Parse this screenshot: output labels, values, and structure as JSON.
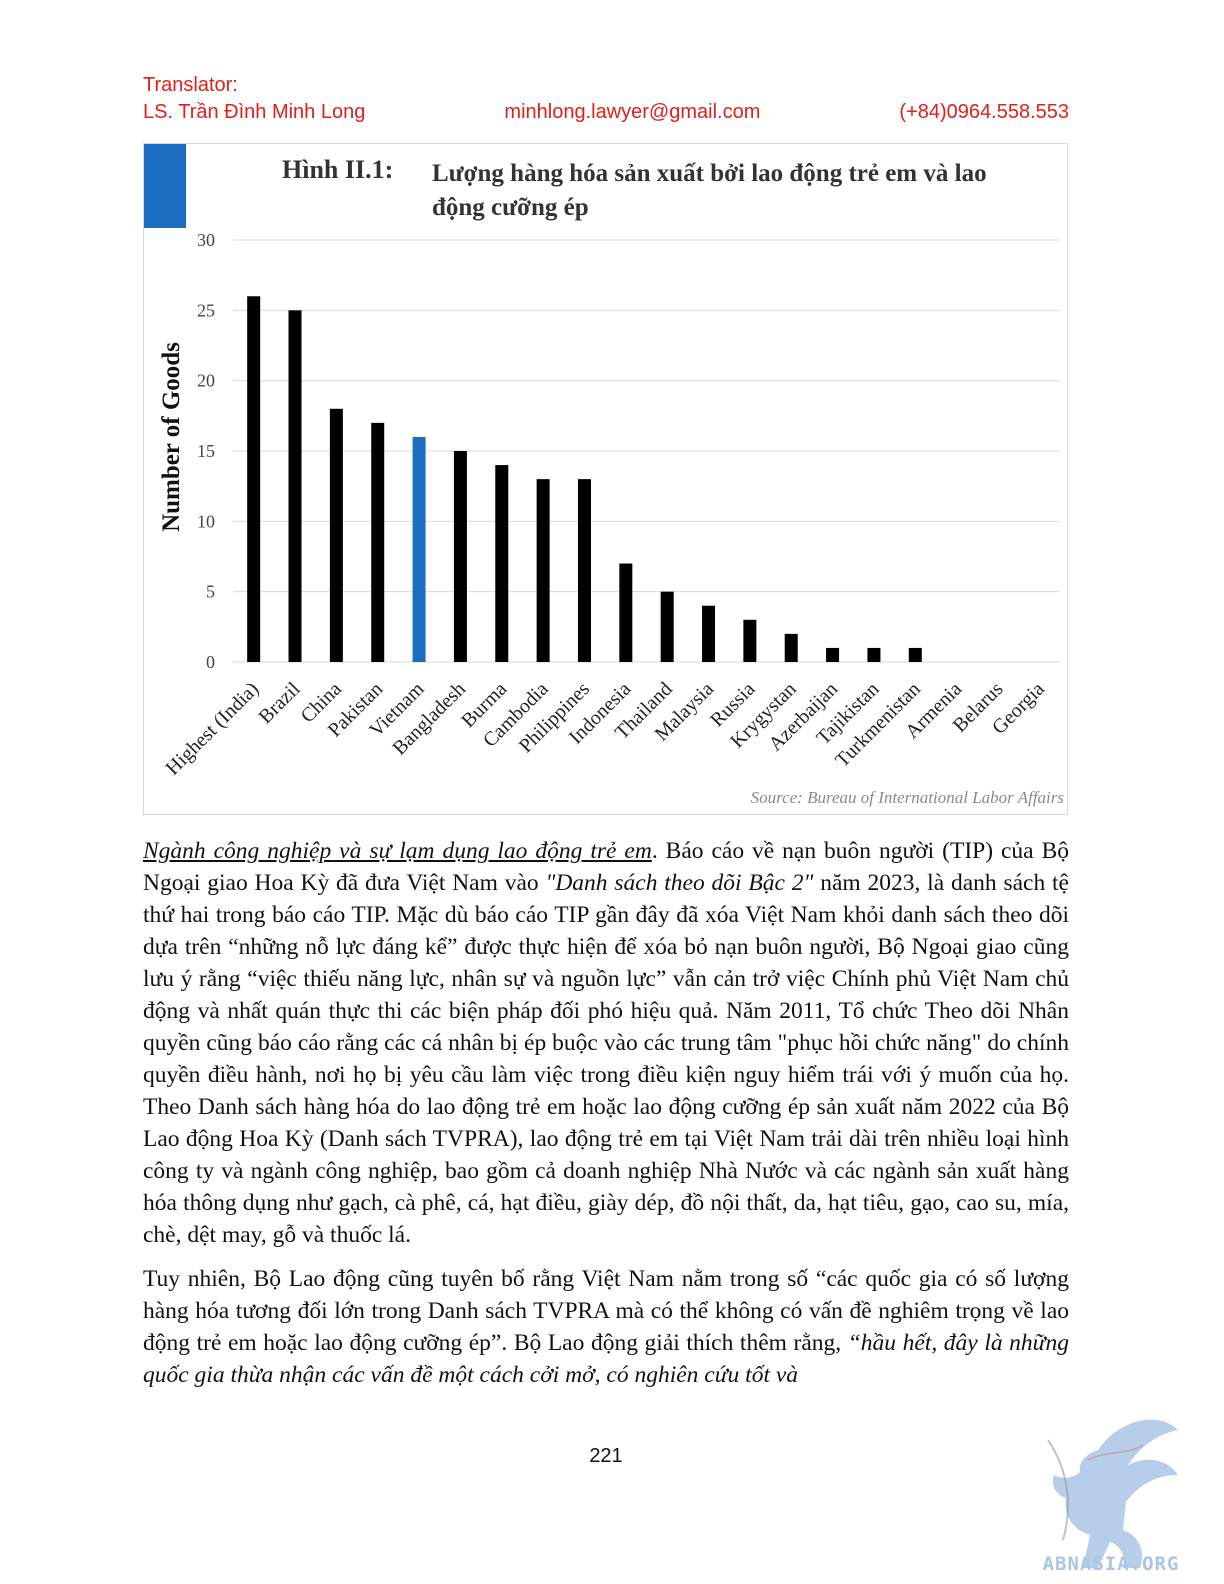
{
  "header": {
    "translator_label": "Translator:",
    "name": "LS. Trần Đình Minh Long",
    "email": "minhlong.lawyer@gmail.com",
    "phone": "(+84)0964.558.553"
  },
  "figure": {
    "label": "Hình II.1:",
    "title": "Lượng hàng hóa sản xuất bởi lao động trẻ em và lao động cưỡng ép",
    "source": "Source: Bureau of International Labor Affairs",
    "accent_color": "#1b6ec2"
  },
  "chart_data": {
    "type": "bar",
    "ylabel": "Number of Goods",
    "xlabel": "",
    "ylim": [
      0,
      30
    ],
    "yticks": [
      0,
      5,
      10,
      15,
      20,
      25,
      30
    ],
    "grid": true,
    "categories": [
      "Highest (India)",
      "Brazil",
      "China",
      "Pakistan",
      "Vietnam",
      "Bangladesh",
      "Burma",
      "Cambodia",
      "Philippines",
      "Indonesia",
      "Thailand",
      "Malaysia",
      "Russia",
      "Krygystan",
      "Azerbaijan",
      "Tajikistan",
      "Turkmenistan",
      "Armenia",
      "Belarus",
      "Georgia"
    ],
    "values": [
      26,
      25,
      18,
      17,
      16,
      15,
      14,
      13,
      13,
      7,
      5,
      4,
      3,
      2,
      1,
      1,
      1,
      0,
      0,
      0
    ],
    "highlight": "Vietnam",
    "bar_color": "#000000",
    "highlight_color": "#1b6ec2"
  },
  "body": {
    "p1_lead": "Ngành công nghiệp và sự lạm dụng lao động trẻ em",
    "p1_a": ". Báo cáo về nạn buôn người (TIP) của Bộ Ngoại giao Hoa Kỳ đã đưa Việt Nam vào ",
    "p1_italic": "\"Danh sách theo dõi Bậc 2\"",
    "p1_b": " năm 2023, là danh sách tệ thứ hai trong báo cáo TIP. Mặc dù báo cáo TIP gần đây đã xóa Việt Nam khỏi danh sách theo dõi dựa trên “những nỗ lực đáng kể” được thực hiện để xóa bỏ nạn buôn người, Bộ Ngoại giao cũng lưu ý rằng “việc thiếu năng lực, nhân sự và nguồn lực” vẫn cản trở việc Chính phủ Việt Nam chủ động và nhất quán thực thi các biện pháp đối phó hiệu quả. Năm 2011, Tổ chức Theo dõi Nhân quyền cũng báo cáo rằng các cá nhân bị ép buộc vào các trung tâm \"phục hồi chức năng\" do chính quyền điều hành, nơi họ bị yêu cầu làm việc trong điều kiện nguy hiểm trái với ý muốn của họ. Theo Danh sách hàng hóa do lao động trẻ em hoặc lao động cưỡng ép sản xuất năm 2022 của Bộ Lao động Hoa Kỳ (Danh sách TVPRA), lao động trẻ em tại Việt Nam trải dài trên nhiều loại hình công ty và ngành công nghiệp, bao gồm cả doanh nghiệp Nhà Nước và các ngành sản xuất hàng hóa thông dụng như gạch, cà phê, cá, hạt điều, giày dép, đồ nội thất, da, hạt tiêu, gạo, cao su, mía, chè, dệt may, gỗ và thuốc lá.",
    "p2_a": "Tuy nhiên, Bộ Lao động cũng tuyên bố rằng Việt Nam nằm trong số “các quốc gia có số lượng hàng hóa tương đối lớn trong Danh sách TVPRA mà có thể không có vấn đề nghiêm trọng về lao động trẻ em hoặc lao động cưỡng ép”. Bộ Lao động giải thích thêm rằng, ",
    "p2_italic": "“hầu hết, đây là những quốc gia thừa nhận các vấn đề một cách cởi mở, có nghiên cứu tốt và"
  },
  "page_number": "221",
  "watermark": {
    "text": "ABNASIA.ORG",
    "icon": "griffin-logo-icon",
    "color": "#8fb6e0"
  }
}
